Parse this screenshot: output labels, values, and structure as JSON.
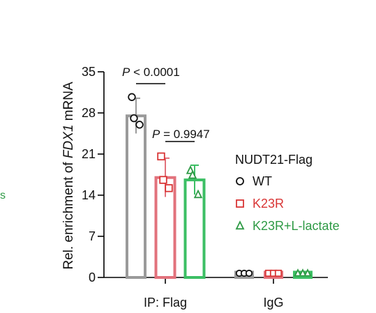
{
  "chart_data": {
    "type": "bar",
    "ylabel": {
      "pre": "Rel. enrichment of ",
      "italic": "FDX1",
      "post": " mRNA"
    },
    "yticks": [
      0,
      7,
      14,
      21,
      28,
      35
    ],
    "ylim": [
      0,
      35
    ],
    "groups": [
      "IP: Flag",
      "IgG"
    ],
    "series": [
      {
        "name": "WT",
        "marker": "circle",
        "color": "#9a9a9a",
        "marker_color": "#111111",
        "values": [
          27.5,
          0.9
        ],
        "errors": [
          3.0,
          0.1
        ],
        "points": [
          [
            30.7,
            27.1,
            26.0
          ],
          [
            0.9,
            0.9,
            0.9
          ]
        ]
      },
      {
        "name": "K23R",
        "marker": "square",
        "color": "#e2727c",
        "marker_color": "#d93535",
        "values": [
          17.0,
          0.9
        ],
        "errors": [
          3.3,
          0.1
        ],
        "points": [
          [
            20.6,
            16.6,
            15.2
          ],
          [
            0.9,
            0.9,
            0.9
          ]
        ]
      },
      {
        "name": "K23R+L-lactate",
        "marker": "triangle",
        "color": "#3cbf64",
        "marker_color": "#2e9a45",
        "values": [
          16.6,
          0.9
        ],
        "errors": [
          2.5,
          0.1
        ],
        "points": [
          [
            18.2,
            17.4,
            14.1
          ],
          [
            0.9,
            0.9,
            0.9
          ]
        ]
      }
    ],
    "legend": {
      "title": "NUDT21-Flag",
      "placement": "right"
    },
    "annotations": [
      {
        "text_pre": "P",
        "text_post": " < 0.0001",
        "between": [
          "WT",
          "K23R"
        ]
      },
      {
        "text_pre": "P",
        "text_post": " = 0.9947",
        "between": [
          "K23R",
          "K23R+L-lactate"
        ]
      }
    ]
  },
  "stray_text": "s"
}
